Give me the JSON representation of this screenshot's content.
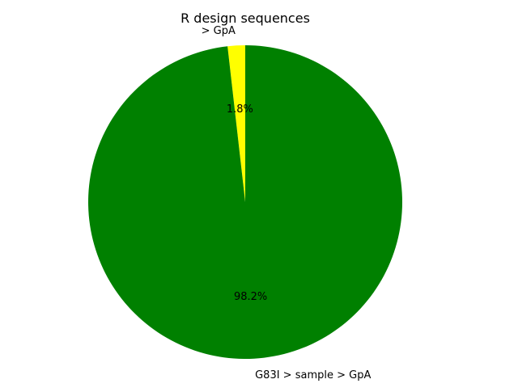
{
  "chart_data": {
    "type": "pie",
    "title": "R design sequences",
    "slices": [
      {
        "label": "> GpA",
        "value": 1.8,
        "pct_label": "1.8%",
        "color": "#ffff00"
      },
      {
        "label": "G83I > sample > GpA",
        "value": 98.2,
        "pct_label": "98.2%",
        "color": "#008000"
      }
    ],
    "start_angle_deg": 90,
    "direction": "counterclockwise"
  }
}
